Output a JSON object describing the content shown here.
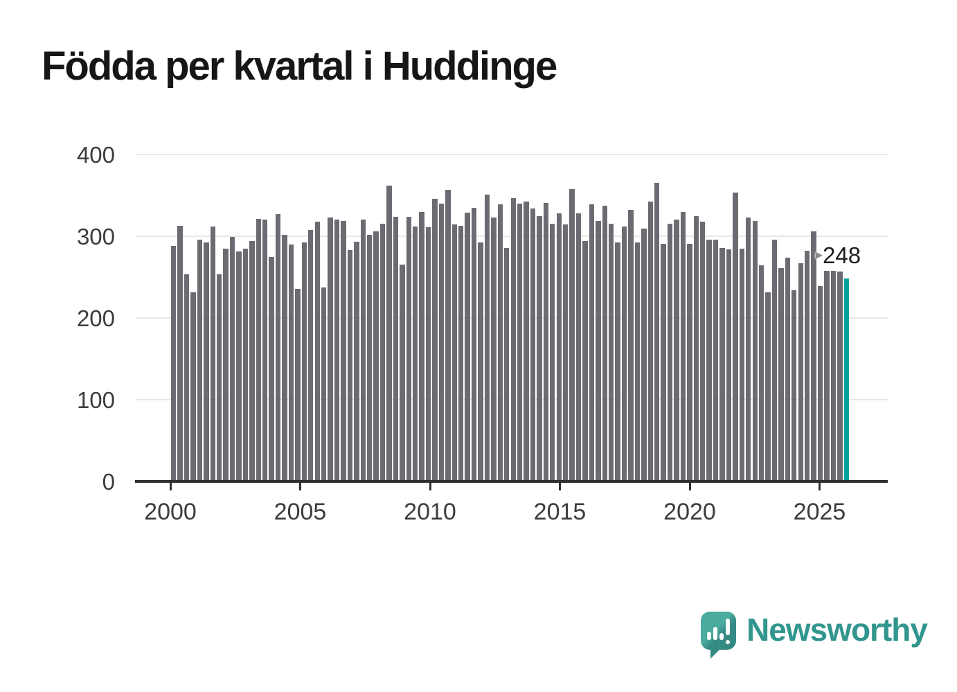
{
  "title": "Födda per kvartal i Huddinge",
  "annotation": {
    "value": "248",
    "arrow_icon": "▸"
  },
  "branding": {
    "wordmark": "Newsworthy",
    "icon": "speech-bubble-bar-chart-exclamation"
  },
  "colors": {
    "bar": "#6b6b72",
    "highlight": "#00a39c",
    "gridline": "#e8e8e8",
    "axis": "#2f2f2f",
    "tick_label": "#3c3c3c",
    "title": "#161616",
    "logo_teal": "#30968e",
    "annotation_text": "#1d1d1d"
  },
  "chart_data": {
    "type": "bar",
    "title": "Födda per kvartal i Huddinge",
    "xlabel": "",
    "ylabel": "",
    "ylim": [
      0,
      400
    ],
    "grid": "horizontal",
    "legend": "none",
    "x_range": {
      "start": "2000 Q1",
      "end": "2025 Q4",
      "frequency": "quarterly"
    },
    "x_tick_labels": [
      "2000",
      "2005",
      "2010",
      "2015",
      "2020",
      "2025"
    ],
    "y_ticks": [
      0,
      100,
      200,
      300,
      400
    ],
    "y_tick_labels": [
      "0",
      "100",
      "200",
      "300",
      "400"
    ],
    "highlight_index": 103,
    "highlight_value": 248,
    "values": [
      288,
      313,
      253,
      231,
      296,
      292,
      312,
      253,
      285,
      299,
      281,
      285,
      294,
      321,
      320,
      275,
      327,
      302,
      290,
      236,
      292,
      308,
      318,
      237,
      323,
      320,
      319,
      283,
      293,
      320,
      302,
      306,
      315,
      362,
      324,
      265,
      324,
      312,
      330,
      311,
      346,
      340,
      357,
      314,
      313,
      329,
      335,
      292,
      351,
      323,
      339,
      286,
      347,
      340,
      342,
      334,
      325,
      341,
      315,
      328,
      314,
      358,
      328,
      294,
      339,
      319,
      337,
      315,
      292,
      312,
      332,
      292,
      309,
      342,
      365,
      291,
      315,
      320,
      330,
      291,
      325,
      318,
      296,
      296,
      286,
      284,
      353,
      285,
      323,
      319,
      264,
      231,
      296,
      261,
      274,
      234,
      267,
      282,
      306,
      239,
      258,
      258,
      257,
      248
    ]
  }
}
